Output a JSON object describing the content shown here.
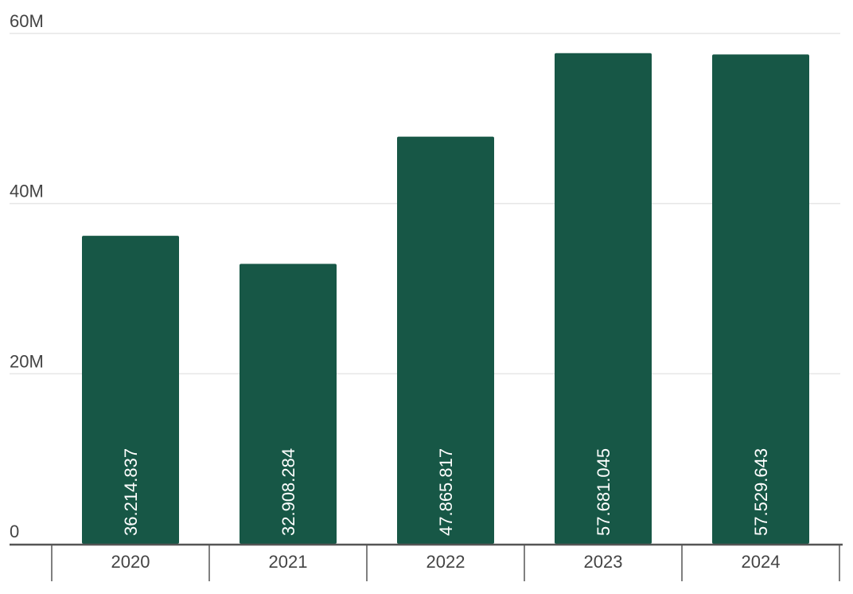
{
  "chart_data": {
    "type": "bar",
    "categories": [
      "2020",
      "2021",
      "2022",
      "2023",
      "2024"
    ],
    "values": [
      36214837,
      32908284,
      47865817,
      57681045,
      57529643
    ],
    "data_labels": [
      "36.214.837",
      "32.908.284",
      "47.865.817",
      "57.681.045",
      "57.529.643"
    ],
    "y_ticks": [
      0,
      20000000,
      40000000,
      60000000
    ],
    "y_tick_labels": [
      "0",
      "20M",
      "40M",
      "60M"
    ],
    "ylim": [
      0,
      60000000
    ],
    "grid": true,
    "legend": "none",
    "colors": {
      "bar": "#175746",
      "grid": "#e6e6e6",
      "axis": "#555555",
      "text": "#444444"
    }
  }
}
